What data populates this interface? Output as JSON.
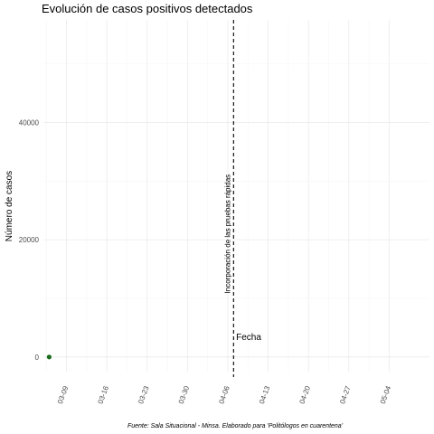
{
  "chart_data": {
    "type": "scatter",
    "title": "Evolución de casos positivos detectados",
    "xlabel": "Fecha",
    "ylabel": "Número de casos",
    "caption": "Fuente: Sala Situacional - Minsa. Elaborado para 'Politólogos en cuarentena'",
    "x_ticks": [
      "03-09",
      "03-16",
      "03-23",
      "03-30",
      "04-06",
      "04-13",
      "04-20",
      "04-27",
      "05-04"
    ],
    "y_ticks": [
      0,
      20000,
      40000
    ],
    "xlim": [
      "03-05",
      "05-11"
    ],
    "ylim": [
      -2500,
      57500
    ],
    "grid": true,
    "points": [
      {
        "x": "03-06",
        "y": 0
      }
    ],
    "point_color": "#1a6b1a",
    "vline": {
      "x": "04-07",
      "label": "Incorporación de las pruebas rápidas"
    }
  }
}
